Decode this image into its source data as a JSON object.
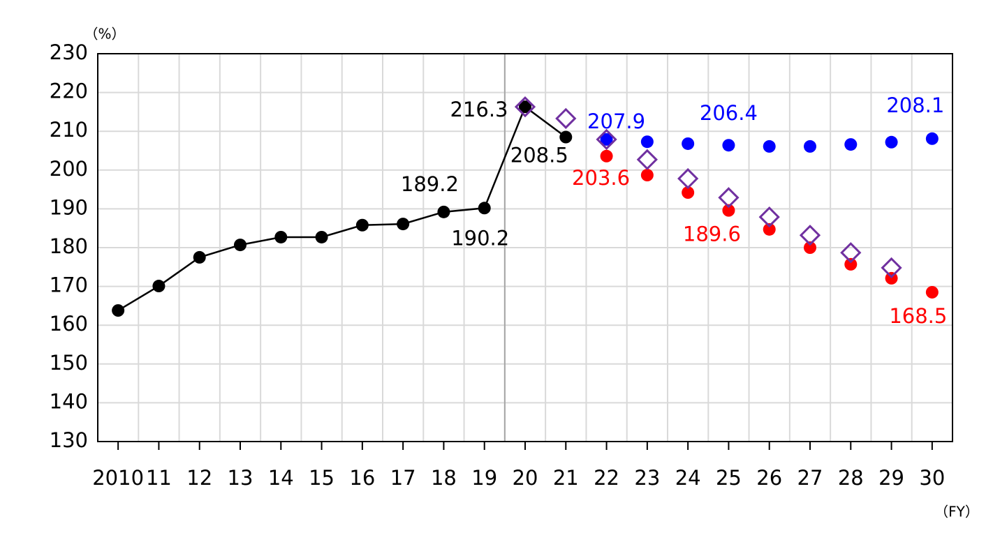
{
  "chart_data": {
    "type": "line",
    "y_label": "（%）",
    "x_label": "（FY）",
    "categories": [
      "2010",
      "11",
      "12",
      "13",
      "14",
      "15",
      "16",
      "17",
      "18",
      "19",
      "20",
      "21",
      "22",
      "23",
      "24",
      "25",
      "26",
      "27",
      "28",
      "29",
      "30"
    ],
    "ylim": [
      130,
      230
    ],
    "yticks": [
      130,
      140,
      150,
      160,
      170,
      180,
      190,
      200,
      210,
      220,
      230
    ],
    "grid": true,
    "series": [
      {
        "color": "#000000",
        "marker": "circle",
        "line": true,
        "values": [
          163.8,
          170.1,
          177.5,
          180.7,
          182.7,
          182.7,
          185.8,
          186.1,
          189.2,
          190.2,
          216.3,
          208.5,
          null,
          null,
          null,
          null,
          null,
          null,
          null,
          null,
          null
        ],
        "value_labels": [
          null,
          null,
          null,
          null,
          null,
          null,
          null,
          null,
          "189.2",
          "190.2",
          "216.3",
          "208.5",
          null,
          null,
          null,
          null,
          null,
          null,
          null,
          null,
          null
        ]
      },
      {
        "color": "#0000ff",
        "marker": "circle",
        "line": false,
        "values": [
          null,
          null,
          null,
          null,
          null,
          null,
          null,
          null,
          null,
          null,
          null,
          null,
          207.9,
          207.3,
          206.8,
          206.4,
          206.1,
          206.1,
          206.6,
          207.2,
          208.1
        ],
        "value_labels": [
          null,
          null,
          null,
          null,
          null,
          null,
          null,
          null,
          null,
          null,
          null,
          null,
          "207.9",
          null,
          null,
          "206.4",
          null,
          null,
          null,
          null,
          "208.1"
        ]
      },
      {
        "color": "#ff0000",
        "marker": "circle",
        "line": false,
        "values": [
          null,
          null,
          null,
          null,
          null,
          null,
          null,
          null,
          null,
          null,
          null,
          null,
          203.6,
          198.7,
          194.2,
          189.6,
          184.7,
          180.0,
          175.7,
          172.1,
          168.5
        ],
        "value_labels": [
          null,
          null,
          null,
          null,
          null,
          null,
          null,
          null,
          null,
          null,
          null,
          null,
          "203.6",
          null,
          null,
          "189.6",
          null,
          null,
          null,
          null,
          "168.5"
        ]
      },
      {
        "color": "#7030a0",
        "marker": "diamond",
        "line": false,
        "values": [
          null,
          null,
          null,
          null,
          null,
          null,
          null,
          null,
          null,
          null,
          216.3,
          213.3,
          207.9,
          202.7,
          197.8,
          192.9,
          187.9,
          183.2,
          178.7,
          174.8,
          null
        ]
      }
    ]
  }
}
